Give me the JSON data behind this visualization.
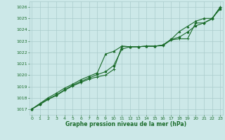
{
  "background_color": "#cce8e8",
  "grid_color": "#aacccc",
  "line_color": "#1a6b2a",
  "text_color": "#1a6b2a",
  "xlabel": "Graphe pression niveau de la mer (hPa)",
  "ylim": [
    1016.5,
    1026.5
  ],
  "xlim": [
    -0.3,
    23.3
  ],
  "yticks": [
    1017,
    1018,
    1019,
    1020,
    1021,
    1022,
    1023,
    1024,
    1025,
    1026
  ],
  "xticks": [
    0,
    1,
    2,
    3,
    4,
    5,
    6,
    7,
    8,
    9,
    10,
    11,
    12,
    13,
    14,
    15,
    16,
    17,
    18,
    19,
    20,
    21,
    22,
    23
  ],
  "series1": [
    1017.0,
    1017.4,
    1017.85,
    1018.2,
    1018.65,
    1019.05,
    1019.35,
    1019.65,
    1019.85,
    1020.0,
    1020.5,
    1022.55,
    1022.5,
    1022.5,
    1022.55,
    1022.55,
    1022.6,
    1023.1,
    1023.2,
    1023.2,
    1024.6,
    1024.6,
    1024.95,
    1026.0
  ],
  "series2": [
    1017.0,
    1017.45,
    1017.9,
    1018.25,
    1018.7,
    1019.1,
    1019.45,
    1019.75,
    1020.05,
    1020.3,
    1020.85,
    1022.3,
    1022.5,
    1022.5,
    1022.55,
    1022.55,
    1022.65,
    1023.15,
    1023.35,
    1023.8,
    1024.35,
    1024.6,
    1025.0,
    1025.85
  ],
  "series3": [
    1017.0,
    1017.5,
    1018.0,
    1018.4,
    1018.85,
    1019.2,
    1019.6,
    1019.9,
    1020.2,
    1021.85,
    1022.1,
    1022.55,
    1022.5,
    1022.5,
    1022.55,
    1022.55,
    1022.65,
    1023.15,
    1023.85,
    1024.3,
    1024.75,
    1025.0,
    1025.0,
    1026.0
  ]
}
